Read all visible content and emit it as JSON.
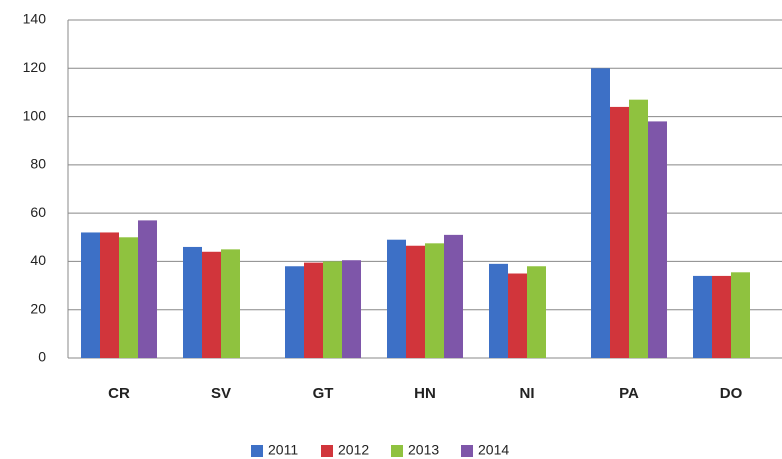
{
  "chart_data": {
    "type": "bar",
    "categories": [
      "CR",
      "SV",
      "GT",
      "HN",
      "NI",
      "PA",
      "DO"
    ],
    "series": [
      {
        "name": "2011",
        "color": "#3d70c6",
        "values": [
          52,
          46,
          38,
          49,
          39,
          120,
          34
        ]
      },
      {
        "name": "2012",
        "color": "#d1353b",
        "values": [
          52,
          44,
          39.5,
          46.5,
          35,
          104,
          34
        ]
      },
      {
        "name": "2013",
        "color": "#8fc23f",
        "values": [
          50,
          45,
          40,
          47.5,
          38,
          107,
          35.5
        ]
      },
      {
        "name": "2014",
        "color": "#7e56a9",
        "values": [
          57,
          null,
          40.5,
          51,
          null,
          98,
          null
        ]
      }
    ],
    "ylim": [
      0,
      140
    ],
    "yticks": [
      0,
      20,
      40,
      60,
      80,
      100,
      120,
      140
    ],
    "grid": true,
    "legend": "bottom"
  }
}
